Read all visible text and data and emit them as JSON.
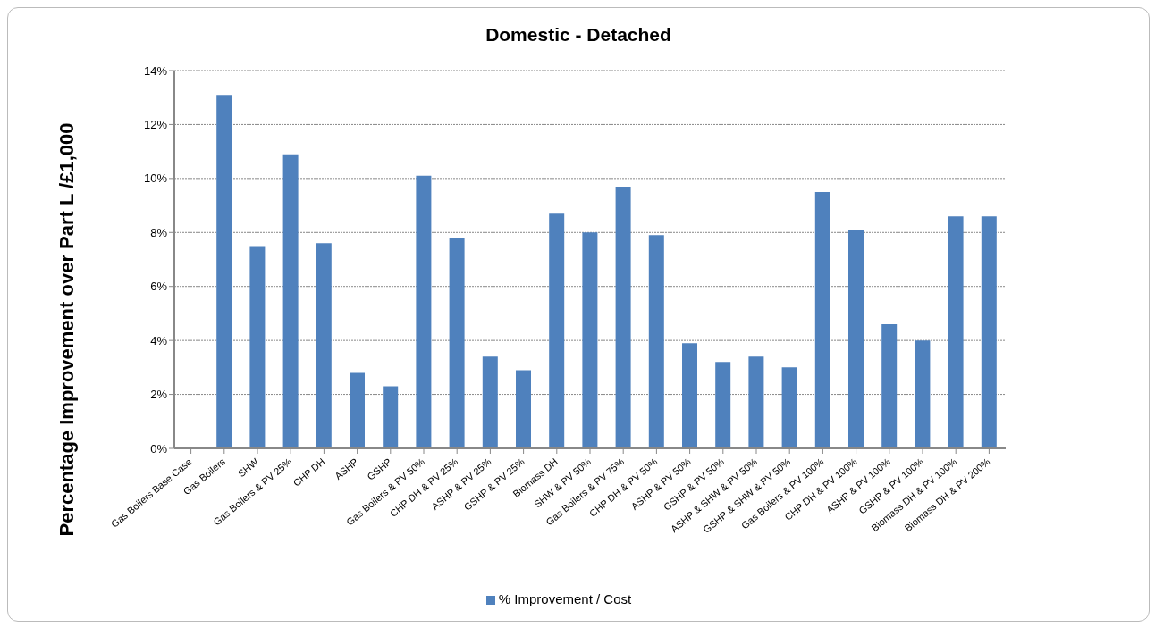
{
  "chart_data": {
    "type": "bar",
    "title": "Domestic - Detached",
    "ylabel": "Percentage Improvement over Part L /£1,000",
    "categories": [
      "Gas Boilers Base Case",
      "Gas Boilers",
      "SHW",
      "Gas Boilers & PV 25%",
      "CHP DH",
      "ASHP",
      "GSHP",
      "Gas Boilers & PV 50%",
      "CHP DH & PV 25%",
      "ASHP & PV 25%",
      "GSHP & PV 25%",
      "Biomass DH",
      "SHW & PV 50%",
      "Gas Boilers & PV 75%",
      "CHP DH & PV 50%",
      "ASHP & PV 50%",
      "GSHP & PV 50%",
      "ASHP & SHW & PV 50%",
      "GSHP & SHW & PV 50%",
      "Gas Boilers & PV 100%",
      "CHP DH & PV 100%",
      "ASHP & PV 100%",
      "GSHP & PV 100%",
      "Biomass DH & PV 100%",
      "Biomass DH & PV 200%"
    ],
    "series": [
      {
        "name": "% Improvement / Cost",
        "color": "#4f81bd",
        "values": [
          0,
          13.1,
          7.5,
          10.9,
          7.6,
          2.8,
          2.3,
          10.1,
          7.8,
          3.4,
          2.9,
          8.7,
          8.0,
          9.7,
          7.9,
          3.9,
          3.2,
          3.4,
          3.0,
          9.5,
          8.1,
          4.6,
          4.0,
          8.6,
          8.6
        ]
      }
    ],
    "ylim": [
      0,
      14
    ],
    "yticks": [
      {
        "value": 0,
        "label": "0%"
      },
      {
        "value": 2,
        "label": "2%"
      },
      {
        "value": 4,
        "label": "4%"
      },
      {
        "value": 6,
        "label": "6%"
      },
      {
        "value": 8,
        "label": "8%"
      },
      {
        "value": 10,
        "label": "10%"
      },
      {
        "value": 12,
        "label": "12%"
      },
      {
        "value": 14,
        "label": "14%"
      }
    ],
    "grid": "y",
    "legend": "bottom"
  }
}
